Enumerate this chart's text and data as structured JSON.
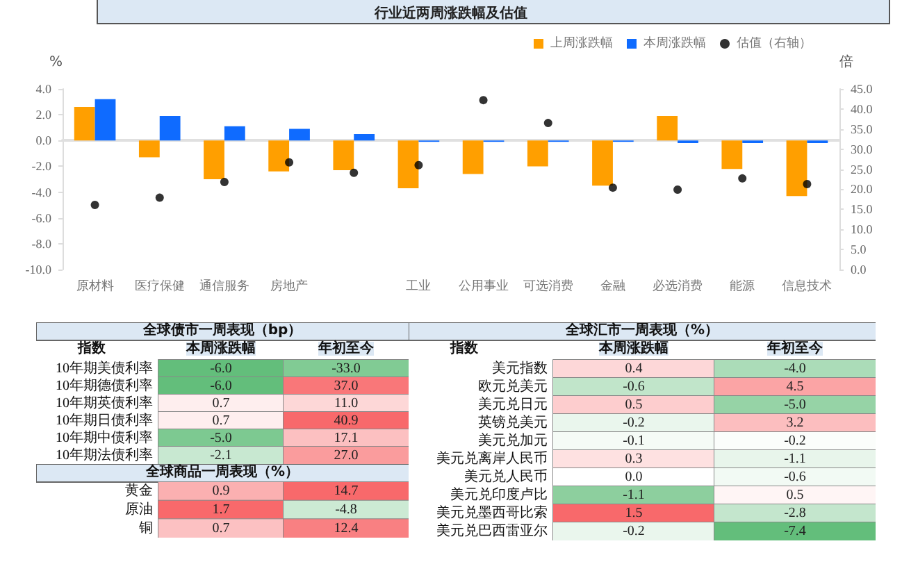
{
  "chart_data": [
    {
      "type": "bar",
      "title": "行业近两周涨跌幅及估值",
      "ylabel": "%",
      "y2label": "倍",
      "legend": "top",
      "marker": "circle",
      "categories": [
        "原材料",
        "医疗保健",
        "通信服务",
        "房地产",
        null,
        "工业",
        "公用事业",
        "可选消费",
        "金融",
        "必选消费",
        "能源",
        "信息技术"
      ],
      "series": [
        {
          "name": "上周涨跌幅",
          "color": "#ff9f00",
          "values": [
            2.6,
            -1.3,
            -3.0,
            -2.4,
            -2.3,
            -3.7,
            -2.6,
            -2.0,
            -3.5,
            1.9,
            -2.2,
            -4.3
          ]
        },
        {
          "name": "本周涨跌幅",
          "color": "#0f6bff",
          "values": [
            3.2,
            1.9,
            1.1,
            0.9,
            0.5,
            -0.1,
            -0.1,
            -0.1,
            -0.1,
            -0.2,
            -0.2,
            -0.2
          ]
        },
        {
          "name": "估值（右轴）",
          "type": "scatter",
          "axis": "y2",
          "color": "#000000",
          "values": [
            16.1,
            17.9,
            21.8,
            26.7,
            24.1,
            26.0,
            42.2,
            36.5,
            20.4,
            19.9,
            22.7,
            21.3
          ]
        }
      ],
      "ylim": [
        -10,
        4
      ],
      "yticks": [
        {
          "value": -10,
          "label": "-10.0"
        },
        {
          "value": -8,
          "label": "-8.0"
        },
        {
          "value": -6,
          "label": "-6.0"
        },
        {
          "value": -4,
          "label": "-4.0"
        },
        {
          "value": -2,
          "label": "-2.0"
        },
        {
          "value": 0,
          "label": "0.0"
        },
        {
          "value": 2,
          "label": "2.0"
        },
        {
          "value": 4,
          "label": "4.0"
        }
      ],
      "y2lim": [
        0,
        45
      ],
      "y2ticks": [
        {
          "value": 0,
          "label": "0.0"
        },
        {
          "value": 5,
          "label": "5.0"
        },
        {
          "value": 10,
          "label": "10.0"
        },
        {
          "value": 15,
          "label": "15.0"
        },
        {
          "value": 20,
          "label": "20.0"
        },
        {
          "value": 25,
          "label": "25.0"
        },
        {
          "value": 30,
          "label": "30.0"
        },
        {
          "value": 35,
          "label": "35.0"
        },
        {
          "value": 40,
          "label": "40.0"
        },
        {
          "value": 45,
          "label": "45.0"
        }
      ]
    },
    {
      "type": "heatmap",
      "title": "全球债市一周表现（bp）",
      "ylabel": "指数",
      "categories": [
        "本周涨跌幅",
        "年初至今"
      ],
      "y_categories": [
        "10年期美债利率",
        "10年期德债利率",
        "10年期英债利率",
        "10年期日债利率",
        "10年期中债利率",
        "10年期法债利率"
      ],
      "cells": [
        [
          -6.0,
          -33.0
        ],
        [
          -6.0,
          37.0
        ],
        [
          0.7,
          11.0
        ],
        [
          0.7,
          40.9
        ],
        [
          -5.0,
          17.1
        ],
        [
          -2.1,
          27.0
        ]
      ],
      "cell_labels": [
        [
          "-6.0",
          "-33.0"
        ],
        [
          "-6.0",
          "37.0"
        ],
        [
          "0.7",
          "11.0"
        ],
        [
          "0.7",
          "40.9"
        ],
        [
          "-5.0",
          "17.1"
        ],
        [
          "-2.1",
          "27.0"
        ]
      ]
    },
    {
      "type": "heatmap",
      "title": "全球商品一周表现（%）",
      "categories": [
        null,
        null
      ],
      "y_categories": [
        "黄金",
        "原油",
        "铜"
      ],
      "cells": [
        [
          0.9,
          14.7
        ],
        [
          1.7,
          -4.8
        ],
        [
          0.7,
          12.4
        ]
      ],
      "cell_labels": [
        [
          "0.9",
          "14.7"
        ],
        [
          "1.7",
          "-4.8"
        ],
        [
          "0.7",
          "12.4"
        ]
      ]
    },
    {
      "type": "heatmap",
      "title": "全球汇市一周表现（%）",
      "ylabel": "指数",
      "categories": [
        "本周涨跌幅",
        "年初至今"
      ],
      "y_categories": [
        "美元指数",
        "欧元兑美元",
        "美元兑日元",
        "英镑兑美元",
        "美元兑加元",
        "美元兑离岸人民币",
        "美元兑人民币",
        "美元兑印度卢比",
        "美元兑墨西哥比索",
        "美元兑巴西雷亚尔"
      ],
      "cells": [
        [
          0.4,
          -4.0
        ],
        [
          -0.6,
          4.5
        ],
        [
          0.5,
          -5.0
        ],
        [
          -0.2,
          3.2
        ],
        [
          -0.1,
          -0.2
        ],
        [
          0.3,
          -1.1
        ],
        [
          0.0,
          -0.6
        ],
        [
          -1.1,
          0.5
        ],
        [
          1.5,
          -2.8
        ],
        [
          -0.2,
          -7.4
        ]
      ],
      "cell_labels": [
        [
          "0.4",
          "-4.0"
        ],
        [
          "-0.6",
          "4.5"
        ],
        [
          "0.5",
          "-5.0"
        ],
        [
          "-0.2",
          "3.2"
        ],
        [
          "-0.1",
          "-0.2"
        ],
        [
          "0.3",
          "-1.1"
        ],
        [
          "0.0",
          "-0.6"
        ],
        [
          "-1.1",
          "0.5"
        ],
        [
          "1.5",
          "-2.8"
        ],
        [
          "-0.2",
          "-7.4"
        ]
      ]
    }
  ]
}
